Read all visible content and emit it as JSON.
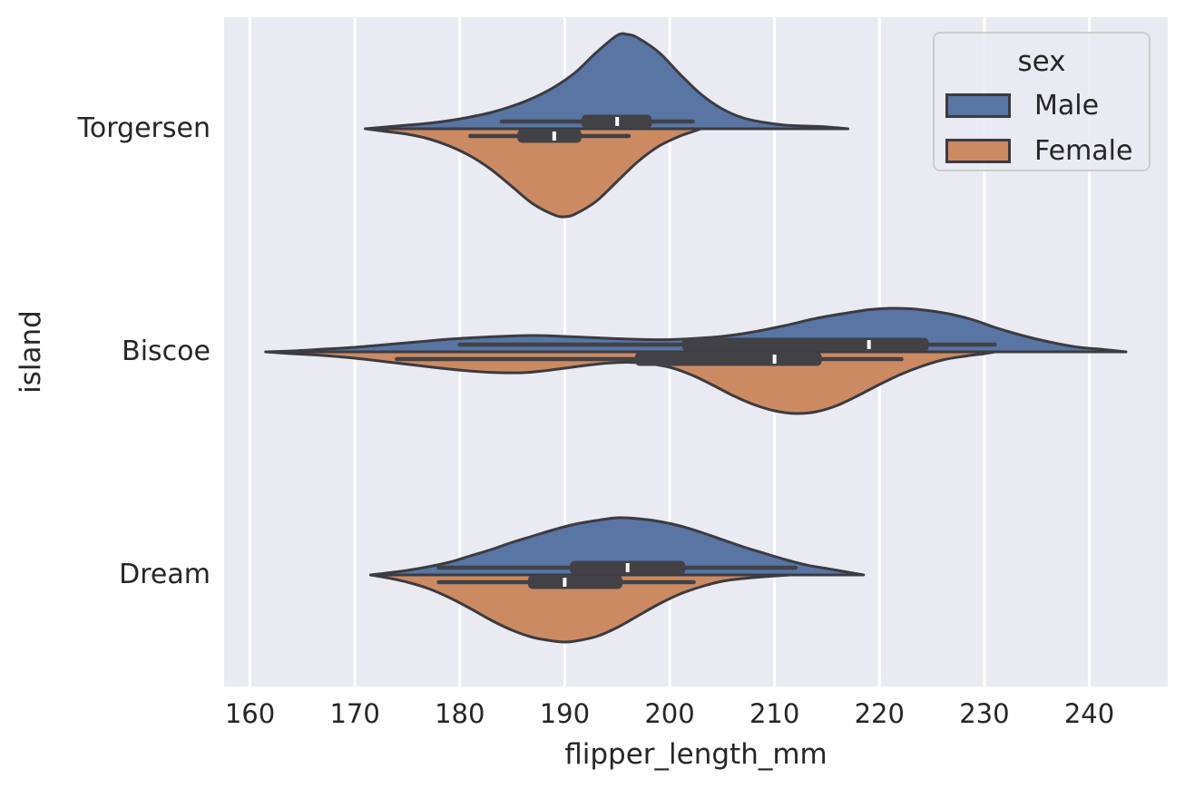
{
  "figure": {
    "background": "#ffffff"
  },
  "axes": {
    "background": "#eaeaf2",
    "gridline_color": "#ffffff",
    "text_color": "#262626"
  },
  "chart_data": {
    "type": "violin",
    "orientation": "horizontal",
    "split": true,
    "inner": "box",
    "title": "",
    "xlabel": "flipper_length_mm",
    "ylabel": "island",
    "x_ticks": [
      160,
      170,
      180,
      190,
      200,
      210,
      220,
      230,
      240
    ],
    "xlim": [
      157.5,
      247.5
    ],
    "categories": [
      "Torgersen",
      "Biscoe",
      "Dream"
    ],
    "legend": {
      "title": "sex",
      "position": "upper right"
    },
    "hue_levels": [
      {
        "name": "Male",
        "color": "#5875a4",
        "side": "top"
      },
      {
        "name": "Female",
        "color": "#cc8a63",
        "side": "bottom"
      }
    ],
    "edge_color": "#3b3b41",
    "box_color": "#414146",
    "median_color": "#ffffff",
    "grid": true,
    "density_units": "x in mm, y = kde half-width in plot px (11.5625 px per mm)",
    "violins": [
      {
        "island": "Torgersen",
        "sex": "Male",
        "stats": {
          "whisker_low": 184.0,
          "q1": 191.6,
          "median": 195.0,
          "q3": 198.3,
          "whisker_high": 202.2
        },
        "support": [
          171,
          217
        ],
        "density": [
          [
            171,
            0
          ],
          [
            173,
            2
          ],
          [
            175,
            4
          ],
          [
            177,
            6
          ],
          [
            179,
            9
          ],
          [
            181,
            13
          ],
          [
            183,
            18
          ],
          [
            185,
            25
          ],
          [
            187,
            34
          ],
          [
            189,
            46
          ],
          [
            191,
            62
          ],
          [
            193,
            84
          ],
          [
            195,
            103
          ],
          [
            196,
            104
          ],
          [
            197,
            100
          ],
          [
            199,
            84
          ],
          [
            201,
            60
          ],
          [
            203,
            38
          ],
          [
            205,
            22
          ],
          [
            207,
            12
          ],
          [
            209,
            7
          ],
          [
            211,
            4
          ],
          [
            213,
            3
          ],
          [
            215,
            2
          ],
          [
            217,
            0
          ]
        ]
      },
      {
        "island": "Torgersen",
        "sex": "Female",
        "stats": {
          "whisker_low": 181.0,
          "q1": 185.5,
          "median": 189.0,
          "q3": 191.6,
          "whisker_high": 196.1
        },
        "support": [
          171,
          203
        ],
        "density": [
          [
            171,
            0
          ],
          [
            173,
            3
          ],
          [
            175,
            6
          ],
          [
            177,
            11
          ],
          [
            179,
            19
          ],
          [
            181,
            30
          ],
          [
            183,
            45
          ],
          [
            185,
            64
          ],
          [
            187,
            83
          ],
          [
            189,
            95
          ],
          [
            190,
            97
          ],
          [
            191,
            94
          ],
          [
            193,
            80
          ],
          [
            195,
            58
          ],
          [
            197,
            36
          ],
          [
            199,
            19
          ],
          [
            201,
            8
          ],
          [
            202,
            4
          ],
          [
            203,
            0
          ]
        ]
      },
      {
        "island": "Biscoe",
        "sex": "Male",
        "stats": {
          "whisker_low": 180.0,
          "q1": 201.2,
          "median": 219.0,
          "q3": 224.7,
          "whisker_high": 231.0
        },
        "support": [
          161.5,
          243.5
        ],
        "density": [
          [
            161.5,
            0
          ],
          [
            164,
            1
          ],
          [
            167,
            3
          ],
          [
            170,
            5
          ],
          [
            173,
            8
          ],
          [
            176,
            11
          ],
          [
            179,
            14
          ],
          [
            182,
            16
          ],
          [
            185,
            17.5
          ],
          [
            187,
            18
          ],
          [
            189,
            17.5
          ],
          [
            192,
            16
          ],
          [
            195,
            14.5
          ],
          [
            198,
            13.5
          ],
          [
            200,
            13.5
          ],
          [
            202,
            14.5
          ],
          [
            205,
            17
          ],
          [
            208,
            22
          ],
          [
            211,
            29
          ],
          [
            214,
            37
          ],
          [
            217,
            43
          ],
          [
            219,
            46.5
          ],
          [
            221,
            48
          ],
          [
            223,
            47.5
          ],
          [
            225,
            45
          ],
          [
            227,
            41
          ],
          [
            229,
            35
          ],
          [
            231,
            27
          ],
          [
            233,
            20
          ],
          [
            235,
            14
          ],
          [
            237,
            9
          ],
          [
            239,
            5
          ],
          [
            241,
            3
          ],
          [
            243.5,
            0
          ]
        ]
      },
      {
        "island": "Biscoe",
        "sex": "Female",
        "stats": {
          "whisker_low": 174.0,
          "q1": 196.7,
          "median": 210.0,
          "q3": 214.5,
          "whisker_high": 222.1
        },
        "support": [
          161.5,
          231
        ],
        "density": [
          [
            161.5,
            0
          ],
          [
            164,
            2
          ],
          [
            167,
            4
          ],
          [
            170,
            7
          ],
          [
            173,
            11
          ],
          [
            176,
            15
          ],
          [
            179,
            19
          ],
          [
            182,
            22
          ],
          [
            184,
            23
          ],
          [
            186,
            23
          ],
          [
            188,
            21
          ],
          [
            190,
            18
          ],
          [
            192,
            15
          ],
          [
            194,
            12.5
          ],
          [
            196,
            11.5
          ],
          [
            198,
            13
          ],
          [
            200,
            17
          ],
          [
            202,
            25
          ],
          [
            204,
            36
          ],
          [
            206,
            48
          ],
          [
            208,
            58
          ],
          [
            210,
            65
          ],
          [
            212,
            68
          ],
          [
            214,
            66
          ],
          [
            216,
            59
          ],
          [
            218,
            48
          ],
          [
            220,
            36
          ],
          [
            222,
            25
          ],
          [
            224,
            16
          ],
          [
            226,
            9
          ],
          [
            228,
            5
          ],
          [
            230,
            2
          ],
          [
            231,
            0
          ]
        ]
      },
      {
        "island": "Dream",
        "sex": "Male",
        "stats": {
          "whisker_low": 178.0,
          "q1": 190.5,
          "median": 196.0,
          "q3": 201.5,
          "whisker_high": 212.0
        },
        "support": [
          171.5,
          218.5
        ],
        "density": [
          [
            171.5,
            0
          ],
          [
            173,
            2
          ],
          [
            175,
            5
          ],
          [
            177,
            9
          ],
          [
            179,
            14
          ],
          [
            181,
            21
          ],
          [
            183,
            28
          ],
          [
            185,
            36
          ],
          [
            187,
            43
          ],
          [
            189,
            50
          ],
          [
            191,
            56
          ],
          [
            193,
            60
          ],
          [
            195,
            63
          ],
          [
            197,
            62
          ],
          [
            199,
            59
          ],
          [
            201,
            54
          ],
          [
            203,
            47
          ],
          [
            205,
            39
          ],
          [
            207,
            31
          ],
          [
            209,
            24
          ],
          [
            211,
            17
          ],
          [
            213,
            11
          ],
          [
            215,
            7
          ],
          [
            217,
            3
          ],
          [
            218.5,
            0
          ]
        ]
      },
      {
        "island": "Dream",
        "sex": "Female",
        "stats": {
          "whisker_low": 178.0,
          "q1": 186.5,
          "median": 190.0,
          "q3": 195.5,
          "whisker_high": 202.3
        },
        "support": [
          171.5,
          211.5
        ],
        "density": [
          [
            171.5,
            0
          ],
          [
            173,
            3
          ],
          [
            175,
            8
          ],
          [
            177,
            15
          ],
          [
            179,
            25
          ],
          [
            181,
            37
          ],
          [
            183,
            50
          ],
          [
            185,
            61
          ],
          [
            187,
            69
          ],
          [
            189,
            73
          ],
          [
            190,
            74
          ],
          [
            191,
            73
          ],
          [
            193,
            68
          ],
          [
            195,
            58
          ],
          [
            197,
            45
          ],
          [
            199,
            32
          ],
          [
            201,
            21
          ],
          [
            203,
            13
          ],
          [
            205,
            7
          ],
          [
            207,
            4
          ],
          [
            209,
            2
          ],
          [
            211.5,
            0
          ]
        ]
      }
    ]
  }
}
